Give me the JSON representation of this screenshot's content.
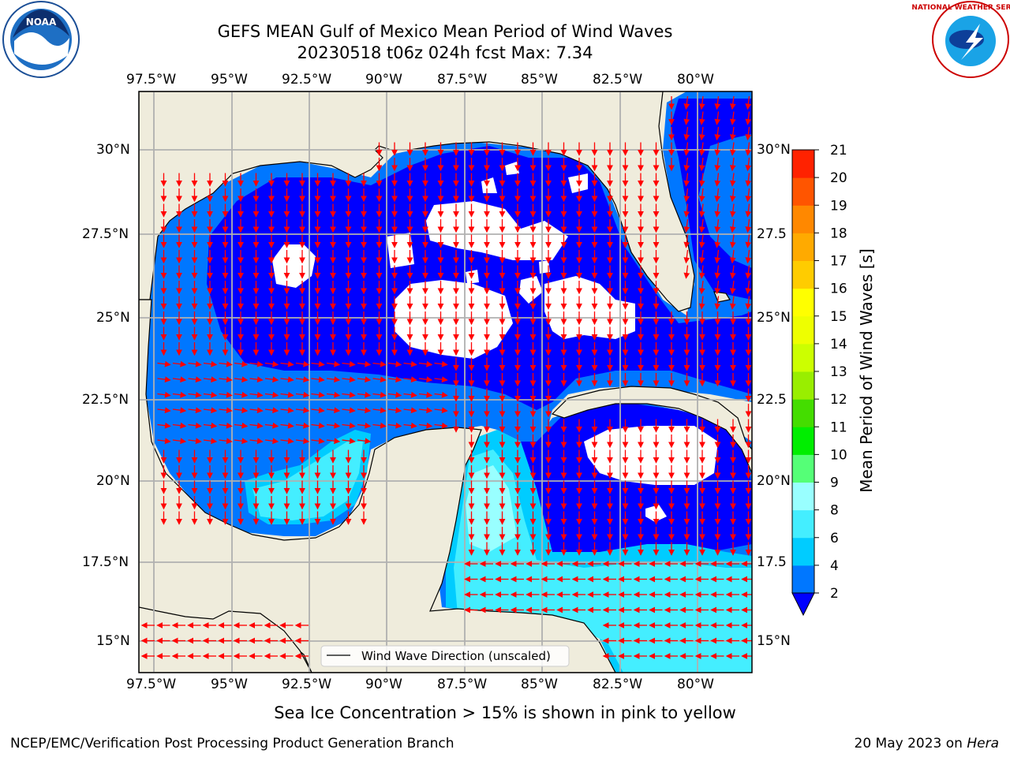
{
  "title_line1": "GEFS MEAN Gulf of Mexico Mean Period of Wind Waves",
  "title_line2": "20230518 t06z 024h fcst   Max: 7.34",
  "lon_labels": [
    "97.5°W",
    "95°W",
    "92.5°W",
    "90°W",
    "87.5°W",
    "85°W",
    "82.5°W",
    "80°W"
  ],
  "lat_labels": [
    "30°N",
    "27.5°N",
    "25°N",
    "22.5°N",
    "20°N",
    "17.5°N",
    "15°N"
  ],
  "lat_labels_right": [
    "30°N",
    "27.5",
    "25°N",
    "22.5",
    "20°N",
    "17.5",
    "15°N"
  ],
  "legend_text": "Wind Wave Direction (unscaled)",
  "footnote": "Sea Ice Concentration > 15% is shown in pink to yellow",
  "credit_left": "NCEP/EMC/Verification Post Processing Product Generation Branch",
  "credit_right_date": "20 May 2023 on ",
  "credit_right_host": "Hera",
  "colorbar": {
    "label": "Mean Period of Wind Waves [s]",
    "ticks": [
      "2",
      "4",
      "6",
      "8",
      "9",
      "10",
      "11",
      "12",
      "13",
      "14",
      "15",
      "16",
      "17",
      "18",
      "19",
      "20",
      "21"
    ],
    "colors": [
      "#0000ff",
      "#0077ff",
      "#00ccff",
      "#44eeff",
      "#99ffff",
      "#55ff77",
      "#00ee00",
      "#44dd00",
      "#99ee00",
      "#ccff00",
      "#eeff00",
      "#ffff00",
      "#ffcc00",
      "#ffaa00",
      "#ff8800",
      "#ff5500",
      "#ff2200",
      "#ff0000"
    ]
  },
  "colors": {
    "land": "#efecdc",
    "ocean_lowest": "#0000ff",
    "ocean_low": "#0077ff",
    "ocean_mid": "#44eeff",
    "arrow": "#ff0000",
    "grid": "#b0b0b0"
  },
  "logos": {
    "left": "NOAA",
    "right": "NATIONAL WEATHER SERVICE"
  }
}
